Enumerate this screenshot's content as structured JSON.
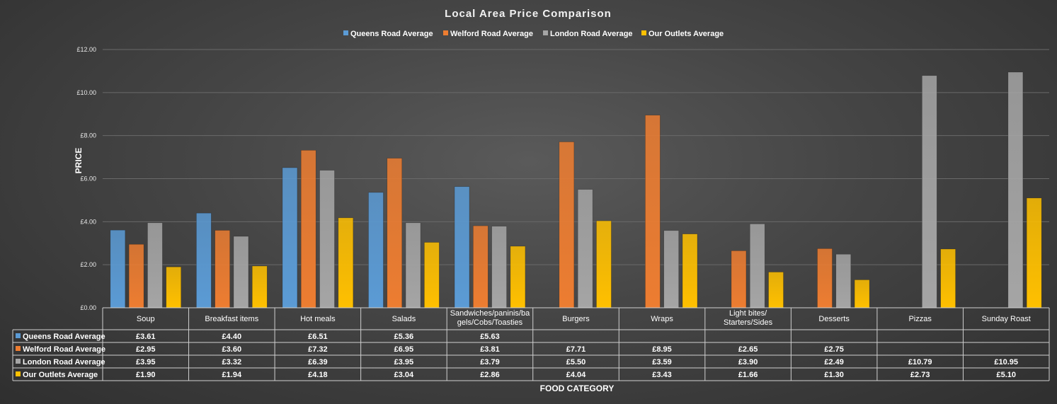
{
  "chart_data": {
    "type": "bar",
    "title": "Local Area Price Comparison",
    "ylabel": "PRICE",
    "xlabel": "FOOD CATEGORY",
    "ylim": [
      0,
      12
    ],
    "yticks": [
      "£0.00",
      "£2.00",
      "£4.00",
      "£6.00",
      "£8.00",
      "£10.00",
      "£12.00"
    ],
    "ytick_values": [
      0,
      2,
      4,
      6,
      8,
      10,
      12
    ],
    "grid": true,
    "legend_position": "top",
    "categories": [
      "Soup",
      "Breakfast items",
      "Hot meals",
      "Salads",
      "Sandwiches/paninis/bagels/Cobs/Toasties",
      "Burgers",
      "Wraps",
      "Light bites/ Starters/Sides",
      "Desserts",
      "Pizzas",
      "Sunday Roast"
    ],
    "category_lines": [
      [
        "Soup"
      ],
      [
        "Breakfast items"
      ],
      [
        "Hot meals"
      ],
      [
        "Salads"
      ],
      [
        "Sandwiches/paninis/ba",
        "gels/Cobs/Toasties"
      ],
      [
        "Burgers"
      ],
      [
        "Wraps"
      ],
      [
        "Light bites/",
        "Starters/Sides"
      ],
      [
        "Desserts"
      ],
      [
        "Pizzas"
      ],
      [
        "Sunday Roast"
      ]
    ],
    "series": [
      {
        "name": "Queens Road Average",
        "color": "#5b9bd5",
        "values": [
          3.61,
          4.4,
          6.51,
          5.36,
          5.63,
          null,
          null,
          null,
          null,
          null,
          null
        ],
        "labels": [
          "£3.61",
          "£4.40",
          "£6.51",
          "£5.36",
          "£5.63",
          "",
          "",
          "",
          "",
          "",
          ""
        ]
      },
      {
        "name": "Welford Road Average",
        "color": "#ed7d31",
        "values": [
          2.95,
          3.6,
          7.32,
          6.95,
          3.81,
          7.71,
          8.95,
          2.65,
          2.75,
          null,
          null
        ],
        "labels": [
          "£2.95",
          "£3.60",
          "£7.32",
          "£6.95",
          "£3.81",
          "£7.71",
          "£8.95",
          "£2.65",
          "£2.75",
          "",
          ""
        ]
      },
      {
        "name": "London Road Average",
        "color": "#a5a5a5",
        "values": [
          3.95,
          3.32,
          6.39,
          3.95,
          3.79,
          5.5,
          3.59,
          3.9,
          2.49,
          10.79,
          10.95
        ],
        "labels": [
          "£3.95",
          "£3.32",
          "£6.39",
          "£3.95",
          "£3.79",
          "£5.50",
          "£3.59",
          "£3.90",
          "£2.49",
          "£10.79",
          "£10.95"
        ]
      },
      {
        "name": "Our Outlets Average",
        "color": "#ffc000",
        "values": [
          1.9,
          1.94,
          4.18,
          3.04,
          2.86,
          4.04,
          3.43,
          1.66,
          1.3,
          2.73,
          5.1
        ],
        "labels": [
          "£1.90",
          "£1.94",
          "£4.18",
          "£3.04",
          "£2.86",
          "£4.04",
          "£3.43",
          "£1.66",
          "£1.30",
          "£2.73",
          "£5.10"
        ]
      }
    ]
  }
}
